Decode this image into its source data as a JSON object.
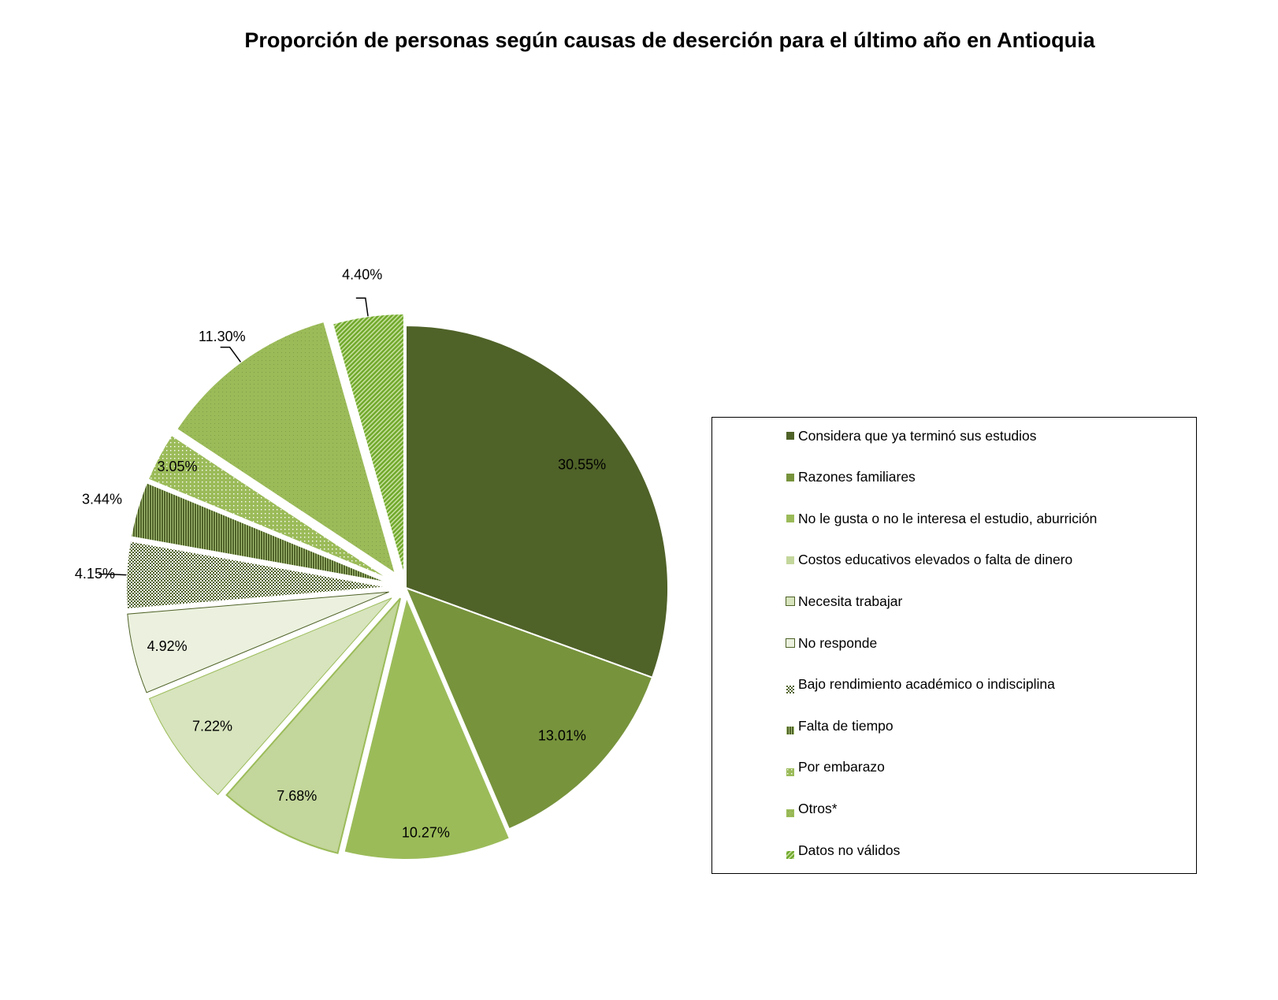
{
  "chart_data": {
    "type": "pie",
    "title": "Proporción de personas según causas de deserción para el último año en Antioquia",
    "legend_position": "right",
    "slices": [
      {
        "name": "Considera que ya terminó sus estudios",
        "value": 30.55,
        "label": "30.55%",
        "color": "#4f6228",
        "pattern": "solid"
      },
      {
        "name": "Razones familiares",
        "value": 13.01,
        "label": "13.01%",
        "color": "#77933c",
        "pattern": "solid"
      },
      {
        "name": "No le gusta o no le interesa el estudio, aburrición",
        "value": 10.27,
        "label": "10.27%",
        "color": "#9bbb59",
        "pattern": "solid"
      },
      {
        "name": "Costos educativos elevados o falta de dinero",
        "value": 7.68,
        "label": "7.68%",
        "color": "#c3d69b",
        "pattern": "solid"
      },
      {
        "name": "Necesita trabajar",
        "value": 7.22,
        "label": "7.22%",
        "color": "#d7e4bd",
        "pattern": "solid"
      },
      {
        "name": "No responde",
        "value": 4.92,
        "label": "4.92%",
        "color": "#ebf1de",
        "pattern": "solid"
      },
      {
        "name": "Bajo rendimiento académico o indisciplina",
        "value": 4.15,
        "label": "4.15%",
        "color": "#4f6228",
        "pattern": "checker"
      },
      {
        "name": "Falta de tiempo",
        "value": 3.44,
        "label": "3.44%",
        "color": "#77933c",
        "pattern": "vertical"
      },
      {
        "name": "Por embarazo",
        "value": 3.05,
        "label": "3.05%",
        "color": "#9bbb59",
        "pattern": "dots"
      },
      {
        "name": "Otros*",
        "value": 11.3,
        "label": "11.30%",
        "color": "#9bbb59",
        "pattern": "fine-dots"
      },
      {
        "name": "Datos no válidos",
        "value": 4.4,
        "label": "4.40%",
        "color": "#77b329",
        "pattern": "diagonal"
      }
    ]
  }
}
